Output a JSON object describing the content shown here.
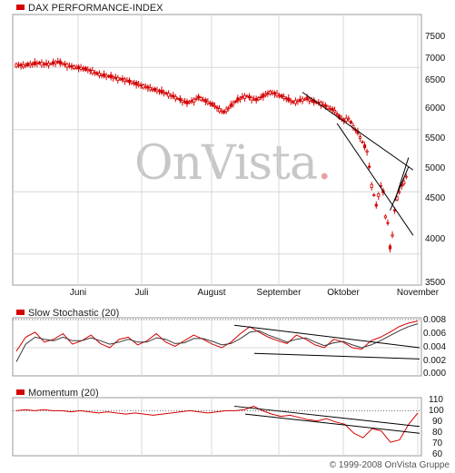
{
  "panels": {
    "main": {
      "title": "DAX PERFORMANCE-INDEX",
      "yticks": [
        "7500",
        "7000",
        "6500",
        "6000",
        "5500",
        "5000",
        "4500",
        "4000",
        "3500"
      ]
    },
    "stoch": {
      "title": "Slow Stochastic (20)",
      "yticks": [
        "0.008",
        "0.006",
        "0.004",
        "0.002",
        "0.000"
      ]
    },
    "mom": {
      "title": "Momentum (20)",
      "yticks": [
        "110",
        "100",
        "90",
        "80",
        "70",
        "60"
      ]
    }
  },
  "xaxis": {
    "months": [
      "Juni",
      "Juli",
      "August",
      "September",
      "Oktober",
      "November"
    ]
  },
  "watermark": {
    "text": "OnVista",
    "dot": "."
  },
  "copyright": "© 1999-2008 OnVista Gruppe",
  "colors": {
    "candle": "#d40000",
    "grid": "#d8d8d8",
    "trend": "#000000",
    "signal": "#3a3a3a"
  },
  "chart_data": [
    {
      "type": "candlestick",
      "title": "DAX PERFORMANCE-INDEX",
      "ylim": [
        3500,
        7500
      ],
      "categories": [
        "Juni",
        "Juli",
        "August",
        "September",
        "Oktober",
        "November"
      ],
      "close_series": [
        [
          0,
          7040
        ],
        [
          3,
          7030
        ],
        [
          6,
          7050
        ],
        [
          10,
          7070
        ],
        [
          13,
          7050
        ],
        [
          15,
          7060
        ],
        [
          18,
          7090
        ],
        [
          20,
          7060
        ],
        [
          23,
          7020
        ],
        [
          26,
          7000
        ],
        [
          29,
          6980
        ],
        [
          32,
          6950
        ],
        [
          35,
          6900
        ],
        [
          38,
          6870
        ],
        [
          41,
          6850
        ],
        [
          44,
          6820
        ],
        [
          47,
          6800
        ],
        [
          50,
          6760
        ],
        [
          53,
          6720
        ],
        [
          56,
          6690
        ],
        [
          59,
          6650
        ],
        [
          62,
          6620
        ],
        [
          65,
          6580
        ],
        [
          67,
          6550
        ],
        [
          70,
          6500
        ],
        [
          72,
          6460
        ],
        [
          74,
          6430
        ],
        [
          77,
          6470
        ],
        [
          79,
          6520
        ],
        [
          81,
          6480
        ],
        [
          84,
          6420
        ],
        [
          86,
          6380
        ],
        [
          88,
          6320
        ],
        [
          90,
          6280
        ],
        [
          92,
          6350
        ],
        [
          94,
          6420
        ],
        [
          96,
          6480
        ],
        [
          98,
          6520
        ],
        [
          100,
          6540
        ],
        [
          102,
          6500
        ],
        [
          104,
          6480
        ],
        [
          106,
          6520
        ],
        [
          108,
          6560
        ],
        [
          110,
          6600
        ],
        [
          112,
          6580
        ],
        [
          114,
          6550
        ],
        [
          116,
          6520
        ],
        [
          118,
          6480
        ],
        [
          120,
          6440
        ],
        [
          122,
          6460
        ],
        [
          124,
          6480
        ],
        [
          126,
          6500
        ],
        [
          128,
          6460
        ],
        [
          130,
          6440
        ],
        [
          132,
          6420
        ],
        [
          134,
          6380
        ],
        [
          136,
          6340
        ],
        [
          138,
          6300
        ],
        [
          140,
          6200
        ],
        [
          142,
          6150
        ],
        [
          144,
          6180
        ],
        [
          146,
          6050
        ],
        [
          148,
          5950
        ],
        [
          150,
          5800
        ],
        [
          152,
          5650
        ],
        [
          153,
          5400
        ],
        [
          154,
          5100
        ],
        [
          155,
          4950
        ],
        [
          156,
          4780
        ],
        [
          157,
          4950
        ],
        [
          158,
          5100
        ],
        [
          159,
          5000
        ],
        [
          160,
          4600
        ],
        [
          161,
          4500
        ],
        [
          162,
          4100
        ],
        [
          163,
          4300
        ],
        [
          164,
          4700
        ],
        [
          165,
          4900
        ],
        [
          166,
          5000
        ],
        [
          167,
          5100
        ],
        [
          168,
          5150
        ],
        [
          169,
          5250
        ],
        [
          170,
          5320
        ]
      ],
      "trendlines": [
        {
          "from": [
            124,
            6600
          ],
          "to": [
            172,
            5350
          ]
        },
        {
          "from": [
            139,
            6100
          ],
          "to": [
            172,
            4300
          ]
        },
        {
          "from": [
            162,
            4700
          ],
          "to": [
            170,
            5400
          ]
        },
        {
          "from": [
            164,
            4850
          ],
          "to": [
            170,
            5550
          ]
        }
      ]
    },
    {
      "type": "line",
      "title": "Slow Stochastic (20)",
      "ylim": [
        0,
        0.008
      ],
      "series": [
        {
          "values": [
            0.0035,
            0.0055,
            0.0062,
            0.0048,
            0.0052,
            0.006,
            0.0045,
            0.005,
            0.0058,
            0.0046,
            0.004,
            0.0052,
            0.0055,
            0.0044,
            0.005,
            0.006,
            0.0048,
            0.0042,
            0.005,
            0.0058,
            0.0052,
            0.0045,
            0.004,
            0.0048,
            0.006,
            0.007,
            0.0062,
            0.0055,
            0.005,
            0.0046,
            0.0058,
            0.0052,
            0.0044,
            0.004,
            0.0052,
            0.0048,
            0.004,
            0.0038,
            0.005,
            0.0055,
            0.0062,
            0.007,
            0.0075,
            0.0078
          ]
        },
        {
          "values": [
            0.002,
            0.0045,
            0.0055,
            0.0052,
            0.005,
            0.0055,
            0.005,
            0.005,
            0.0054,
            0.005,
            0.0045,
            0.0048,
            0.0052,
            0.0048,
            0.0048,
            0.0054,
            0.0052,
            0.0046,
            0.0047,
            0.0053,
            0.0053,
            0.0049,
            0.0044,
            0.0046,
            0.0053,
            0.0062,
            0.0064,
            0.0058,
            0.0053,
            0.0048,
            0.0052,
            0.0054,
            0.0048,
            0.0043,
            0.0047,
            0.0049,
            0.0044,
            0.004,
            0.0044,
            0.005,
            0.0057,
            0.0064,
            0.007,
            0.0074
          ]
        }
      ]
    },
    {
      "type": "line",
      "title": "Momentum (20)",
      "ylim": [
        60,
        110
      ],
      "series": [
        {
          "values": [
            100,
            101,
            100,
            101,
            100,
            100,
            99,
            100,
            99,
            98,
            99,
            98,
            97,
            98,
            97,
            96,
            97,
            98,
            99,
            100,
            99,
            98,
            99,
            100,
            100,
            101,
            104,
            100,
            97,
            95,
            96,
            94,
            92,
            91,
            93,
            90,
            88,
            80,
            76,
            84,
            82,
            72,
            74,
            88,
            98
          ]
        }
      ]
    }
  ]
}
